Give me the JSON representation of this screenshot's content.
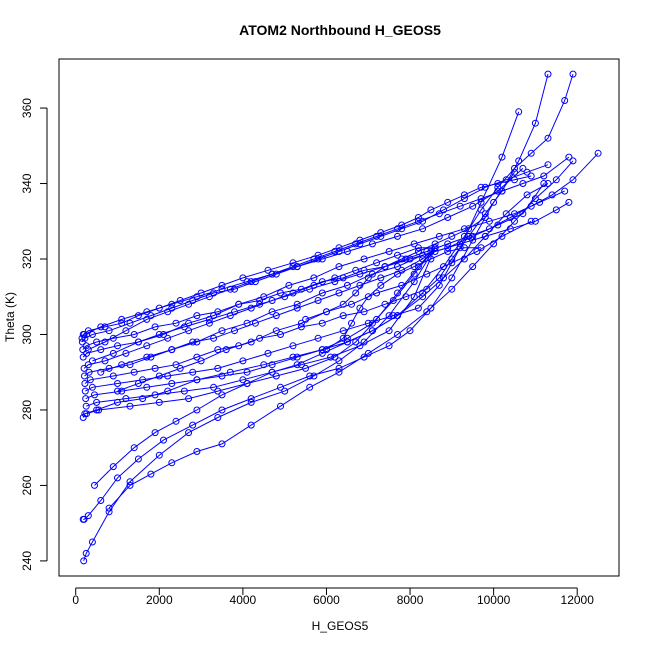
{
  "chart_data": {
    "type": "line",
    "title": "ATOM2 Northbound H_GEOS5",
    "xlabel": "H_GEOS5",
    "ylabel": "Theta (K)",
    "xlim": [
      -400,
      13000
    ],
    "ylim": [
      236,
      373
    ],
    "xticks": [
      0,
      2000,
      4000,
      6000,
      8000,
      10000,
      12000
    ],
    "yticks": [
      240,
      260,
      280,
      300,
      320,
      340,
      360
    ],
    "grid": false,
    "legend": "none",
    "marker": "open-circle",
    "series_color": "#0000ff",
    "series": [
      {
        "x": [
          150,
          180,
          300,
          700,
          1100,
          1500,
          2000,
          2500,
          3000,
          3500,
          4000,
          4600,
          5200,
          5800,
          6300,
          6800,
          7300,
          7800,
          8200,
          8500,
          8900,
          9300,
          9700,
          10100,
          10500,
          10900
        ],
        "y": [
          299,
          300,
          301,
          302,
          303,
          305,
          307,
          309,
          311,
          313,
          315,
          317,
          319,
          321,
          323,
          325,
          327,
          329,
          331,
          333,
          335,
          337,
          339,
          340,
          341,
          342
        ]
      },
      {
        "x": [
          160,
          220,
          400,
          800,
          1300,
          1800,
          2300,
          2800,
          3300,
          3800,
          4300,
          4800,
          5300,
          5800,
          6300,
          6800,
          7300,
          7800,
          8300,
          8800,
          9300,
          9800,
          10300,
          10800,
          11300
        ],
        "y": [
          298,
          299,
          300,
          301,
          303,
          305,
          307,
          309,
          311,
          312,
          314,
          316,
          318,
          320,
          322,
          324,
          326,
          328,
          330,
          333,
          336,
          339,
          341,
          343,
          345
        ]
      },
      {
        "x": [
          170,
          250,
          500,
          900,
          1400,
          1900,
          2400,
          2900,
          3400,
          3900,
          4400,
          4900,
          5400,
          5900,
          6400,
          6900,
          7400,
          7900,
          8400,
          8900,
          9400,
          9900,
          10400,
          10900,
          11400,
          11900,
          12500
        ],
        "y": [
          296,
          297,
          298,
          299,
          300,
          302,
          303,
          305,
          306,
          308,
          309,
          311,
          312,
          314,
          315,
          317,
          318,
          320,
          322,
          324,
          326,
          328,
          331,
          334,
          337,
          341,
          348
        ]
      },
      {
        "x": [
          180,
          260,
          600,
          1000,
          1500,
          2000,
          2600,
          3200,
          3800,
          4400,
          5000,
          5600,
          6200,
          6800,
          7400,
          8000,
          8600,
          9200,
          9800,
          10400,
          11000,
          11500,
          11800
        ],
        "y": [
          294,
          295,
          296,
          297,
          298,
          300,
          302,
          304,
          306,
          308,
          310,
          312,
          314,
          316,
          318,
          320,
          322,
          324,
          326,
          328,
          330,
          333,
          335
        ]
      },
      {
        "x": [
          200,
          300,
          700,
          1200,
          1700,
          2200,
          2700,
          3200,
          3700,
          4200,
          4700,
          5200,
          5700,
          6200,
          6700,
          7200,
          7700,
          8200,
          8600
        ],
        "y": [
          291,
          292,
          293,
          295,
          297,
          299,
          301,
          303,
          305,
          307,
          309,
          311,
          313,
          315,
          317,
          319,
          321,
          323,
          323
        ]
      },
      {
        "x": [
          210,
          320,
          800,
          1300,
          1800,
          2300,
          2800,
          3300,
          3800,
          4300,
          4800,
          5300,
          5800,
          6300,
          6800,
          7300,
          7800,
          8300,
          8500,
          8600
        ],
        "y": [
          289,
          290,
          291,
          292,
          294,
          296,
          298,
          299,
          301,
          303,
          305,
          307,
          309,
          311,
          313,
          315,
          317,
          320,
          322,
          323
        ]
      },
      {
        "x": [
          220,
          350,
          900,
          1400,
          1900,
          2400,
          2900,
          3400,
          3900,
          4400,
          4900,
          5400,
          5900,
          6400,
          6900,
          7400,
          7900,
          8400,
          8700,
          9000,
          9400,
          9800,
          10200,
          10600,
          11000,
          11300
        ],
        "y": [
          287,
          288,
          289,
          290,
          291,
          292,
          294,
          296,
          297,
          299,
          300,
          302,
          303,
          305,
          306,
          308,
          310,
          312,
          315,
          320,
          326,
          332,
          338,
          346,
          356,
          369
        ]
      },
      {
        "x": [
          230,
          400,
          1000,
          1600,
          2200,
          2800,
          3400,
          4000,
          4600,
          5200,
          5800,
          6400,
          7000,
          7600,
          8200,
          8700,
          9200,
          9700,
          10200,
          10600
        ],
        "y": [
          285,
          286,
          287,
          288,
          289,
          290,
          291,
          293,
          295,
          297,
          299,
          301,
          303,
          305,
          307,
          313,
          323,
          335,
          347,
          359
        ]
      },
      {
        "x": [
          240,
          450,
          1100,
          1700,
          2300,
          2900,
          3500,
          4100,
          4700,
          5300,
          5900,
          6500,
          7100,
          7700,
          8300,
          8800,
          9300,
          9700,
          10100,
          10500,
          10900,
          11300,
          11700,
          11900
        ],
        "y": [
          283,
          284,
          285,
          286,
          287,
          288,
          289,
          290,
          292,
          294,
          296,
          298,
          301,
          305,
          311,
          318,
          326,
          333,
          339,
          344,
          348,
          352,
          362,
          369
        ]
      },
      {
        "x": [
          250,
          500,
          1200,
          1900,
          2600,
          3300,
          4000,
          4700,
          5400,
          6100,
          6800,
          7500,
          8100,
          8600
        ],
        "y": [
          281,
          282,
          283,
          284,
          285,
          286,
          288,
          290,
          292,
          294,
          297,
          301,
          310,
          323
        ]
      },
      {
        "x": [
          260,
          550,
          1300,
          2000,
          2700,
          3400,
          4100,
          4800,
          5500,
          6200,
          6700,
          7200,
          7700,
          8200,
          8600
        ],
        "y": [
          279,
          280,
          281,
          282,
          283,
          285,
          287,
          289,
          291,
          294,
          298,
          304,
          311,
          318,
          323
        ]
      },
      {
        "x": [
          180,
          220,
          500,
          1000,
          1600,
          2200,
          2900,
          3700,
          4500,
          5200,
          5900,
          6500,
          7100,
          7600,
          8100,
          8600
        ],
        "y": [
          278,
          279,
          280,
          282,
          283,
          285,
          288,
          290,
          292,
          294,
          296,
          299,
          303,
          309,
          316,
          323
        ]
      },
      {
        "x": [
          180,
          200,
          300,
          600,
          1000,
          1500,
          2100,
          2800,
          3500,
          4200,
          4900,
          5600,
          6300,
          6900,
          7500,
          8000,
          8500,
          9000,
          9500,
          10000,
          10500
        ],
        "y": [
          251,
          251,
          252,
          256,
          262,
          267,
          272,
          276,
          280,
          283,
          286,
          289,
          291,
          294,
          297,
          301,
          307,
          315,
          325,
          335,
          343
        ]
      },
      {
        "x": [
          190,
          250,
          400,
          800,
          1300,
          2000,
          2700,
          3400,
          4200,
          5000,
          5700,
          6300,
          6900,
          7500,
          8100,
          8600
        ],
        "y": [
          240,
          242,
          245,
          253,
          261,
          268,
          274,
          278,
          282,
          285,
          289,
          293,
          298,
          305,
          314,
          323
        ]
      },
      {
        "x": [
          450,
          900,
          1400,
          1900,
          2400,
          2900,
          3500,
          4100,
          4700,
          5300,
          5900,
          6500,
          7100,
          7700,
          8300,
          8800,
          9300,
          9800,
          10300,
          10800,
          11300
        ],
        "y": [
          260,
          265,
          270,
          274,
          277,
          280,
          284,
          287,
          290,
          292,
          295,
          298,
          301,
          305,
          310,
          315,
          320,
          326,
          332,
          337,
          340
        ]
      },
      {
        "x": [
          800,
          1300,
          1800,
          2300,
          2900,
          3500,
          4200,
          4900,
          5600,
          6300,
          7000,
          7700,
          8400,
          9000,
          9500,
          10000,
          10500,
          11000,
          11500,
          11900
        ],
        "y": [
          254,
          260,
          263,
          266,
          269,
          271,
          276,
          281,
          286,
          290,
          295,
          300,
          306,
          312,
          318,
          324,
          330,
          336,
          341,
          346
        ]
      },
      {
        "x": [
          300,
          700,
          1200,
          1700,
          2200,
          2700,
          3200,
          3700,
          4200,
          4700,
          5200,
          5700,
          6200,
          6700,
          7200,
          7700,
          8200,
          8700,
          9200,
          9700,
          10200,
          10700,
          11200,
          11800
        ],
        "y": [
          296,
          298,
          301,
          304,
          306,
          308,
          310,
          312,
          314,
          316,
          318,
          320,
          322,
          324,
          326,
          328,
          330,
          332,
          334,
          336,
          338,
          340,
          342,
          347
        ]
      },
      {
        "x": [
          400,
          900,
          1500,
          2100,
          2700,
          3300,
          3900,
          4500,
          5100,
          5700,
          6300,
          6900,
          7500,
          8100,
          8700,
          9300,
          9900,
          10500,
          11100,
          11700
        ],
        "y": [
          293,
          295,
          298,
          300,
          303,
          305,
          308,
          310,
          313,
          315,
          318,
          320,
          322,
          324,
          326,
          328,
          330,
          332,
          335,
          338
        ]
      },
      {
        "x": [
          600,
          1100,
          1700,
          2300,
          2900,
          3500,
          4100,
          4700,
          5300,
          5900,
          6500,
          7100,
          7700,
          8300,
          8900,
          9500,
          10100,
          10700,
          11200
        ],
        "y": [
          290,
          292,
          294,
          296,
          298,
          301,
          303,
          306,
          308,
          311,
          313,
          316,
          318,
          321,
          323,
          326,
          329,
          332,
          340
        ]
      },
      {
        "x": [
          1000,
          1500,
          2000,
          2500,
          3000,
          3600,
          4200,
          4800,
          5400,
          6000,
          6600,
          7200,
          7800,
          8400,
          9000,
          9600,
          10200,
          10900
        ],
        "y": [
          285,
          287,
          289,
          291,
          293,
          296,
          298,
          301,
          303,
          306,
          308,
          311,
          313,
          316,
          319,
          322,
          326,
          330
        ]
      },
      {
        "x": [
          200,
          600,
          1100,
          1700,
          2300,
          2900,
          3500,
          4100,
          4700,
          5300,
          5900,
          6500,
          7100,
          7700,
          8300,
          8900,
          9500,
          10100,
          10700
        ],
        "y": [
          300,
          302,
          304,
          306,
          308,
          310,
          312,
          314,
          316,
          318,
          320,
          322,
          324,
          326,
          328,
          331,
          334,
          338,
          344
        ]
      },
      {
        "x": [
          6000,
          6400,
          6600,
          6800,
          7000,
          7300,
          7700,
          8100,
          8500,
          8900,
          9300,
          9700
        ],
        "y": [
          296,
          299,
          303,
          307,
          310,
          313,
          316,
          318,
          320,
          322,
          323,
          323
        ]
      },
      {
        "x": [
          5500,
          6000,
          6400,
          6700,
          7000,
          7400,
          7800,
          8200,
          8600,
          9000,
          9400,
          9800
        ],
        "y": [
          304,
          306,
          308,
          311,
          315,
          318,
          320,
          322,
          324,
          326,
          328,
          331
        ]
      }
    ]
  }
}
